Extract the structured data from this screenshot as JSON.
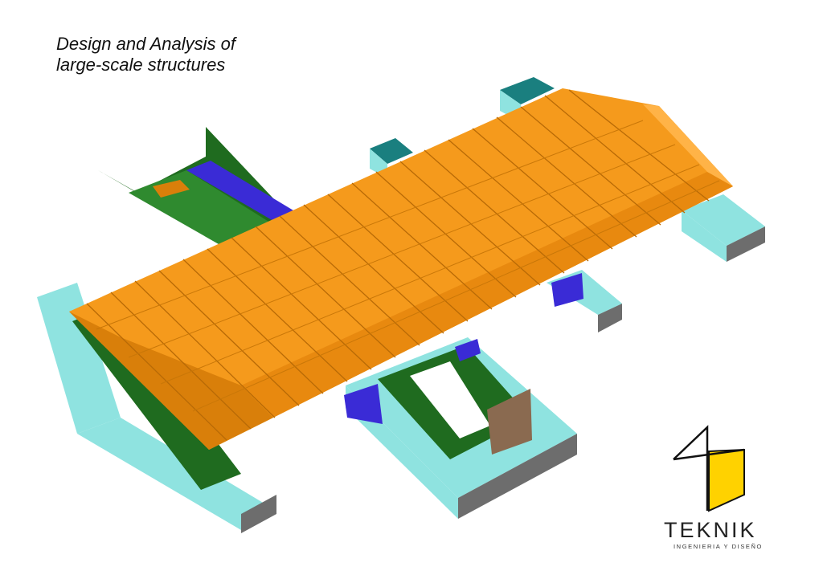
{
  "title": {
    "line1": "Design and Analysis of",
    "line2": "large-scale structures"
  },
  "brand": {
    "name": "TEKNIK",
    "subtitle": "INGENIERIA Y DISEÑO"
  },
  "colors": {
    "roof": "#f59a1c",
    "roof_dark": "#d97f0a",
    "wall_green": "#1f6b1f",
    "wall_cyan": "#8fe3e0",
    "wall_grey": "#6d6d6d",
    "wall_blue": "#3a2bd6",
    "logo_yellow": "#ffd200"
  }
}
